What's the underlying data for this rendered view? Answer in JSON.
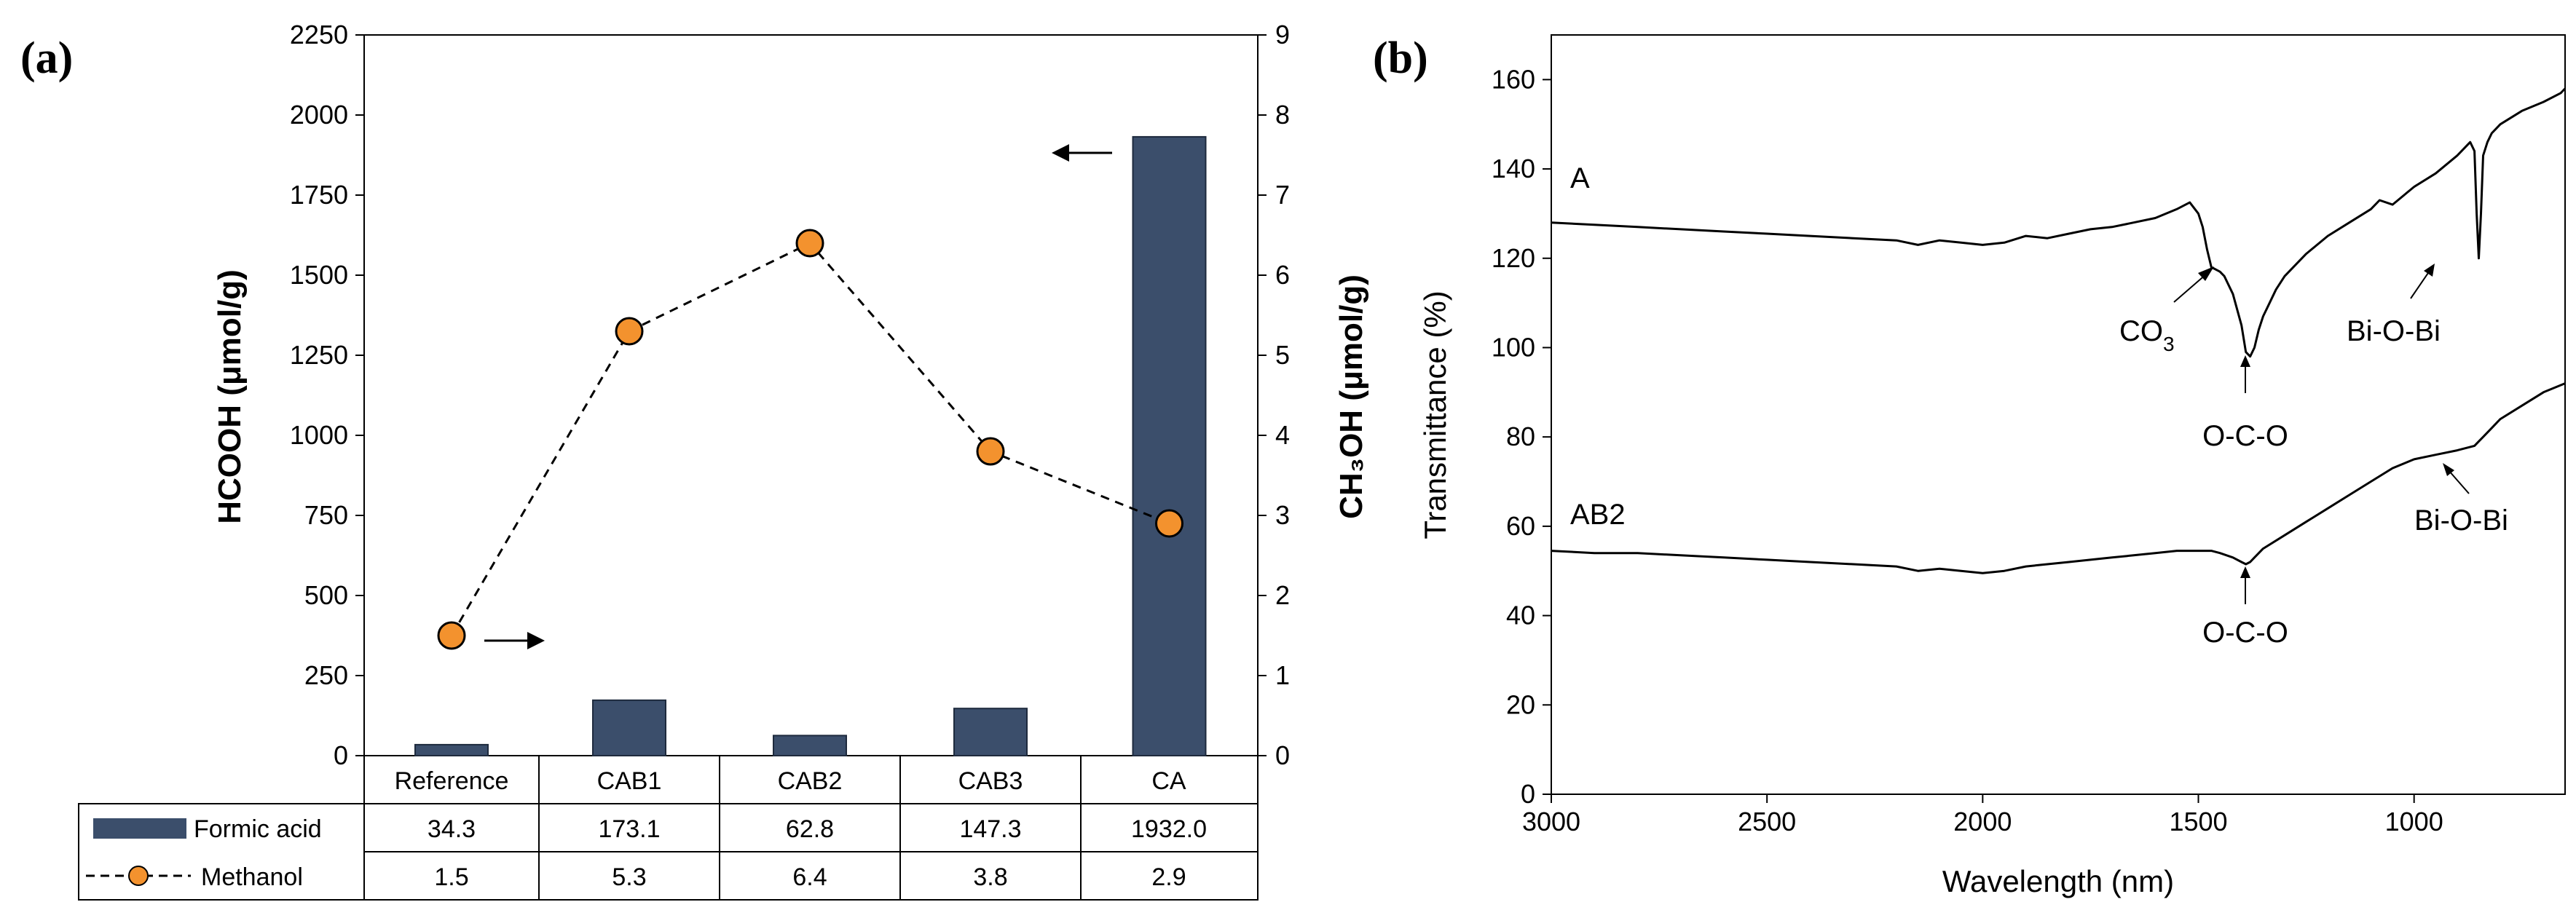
{
  "panel_a": {
    "label": "(a)",
    "left_axis_label": "HCOOH (μmol/g)",
    "right_axis_label": "CH₃OH (μmol/g)",
    "left_ticks": [
      "0",
      "250",
      "500",
      "750",
      "1000",
      "1250",
      "1500",
      "1750",
      "2000",
      "2250"
    ],
    "right_ticks": [
      "0",
      "1",
      "2",
      "3",
      "4",
      "5",
      "6",
      "7",
      "8",
      "9"
    ],
    "table": {
      "header": [
        "Reference",
        "CAB1",
        "CAB2",
        "CAB3",
        "CA"
      ],
      "rows": [
        {
          "label": "Formic acid",
          "values": [
            "34.3",
            "173.1",
            "62.8",
            "147.3",
            "1932.0"
          ]
        },
        {
          "label": "Methanol",
          "values": [
            "1.5",
            "5.3",
            "6.4",
            "3.8",
            "2.9"
          ]
        }
      ]
    }
  },
  "panel_b": {
    "label": "(b)",
    "xlabel": "Wavelength (nm)",
    "ylabel": "Transmittance (%)",
    "x_ticks": [
      "3000",
      "2500",
      "2000",
      "1500",
      "1000"
    ],
    "y_ticks": [
      "0",
      "20",
      "40",
      "60",
      "80",
      "100",
      "120",
      "140",
      "160"
    ],
    "series_labels": [
      "A",
      "AB2"
    ],
    "annotations": {
      "co3_main": "CO",
      "co3_sub": "3",
      "oco_a": "O-C-O",
      "bob_a": "Bi-O-Bi",
      "oco_ab2": "O-C-O",
      "bob_ab2": "Bi-O-Bi"
    }
  },
  "chart_data": [
    {
      "type": "bar",
      "title": "",
      "categories": [
        "Reference",
        "CAB1",
        "CAB2",
        "CAB3",
        "CA"
      ],
      "series": [
        {
          "name": "Formic acid",
          "axis": "left",
          "type": "bar",
          "values": [
            34.3,
            173.1,
            62.8,
            147.3,
            1932.0
          ]
        },
        {
          "name": "Methanol",
          "axis": "right",
          "type": "line",
          "values": [
            1.5,
            5.3,
            6.4,
            3.8,
            2.9
          ]
        }
      ],
      "ylabel": "HCOOH (μmol/g)",
      "y2label": "CH₃OH (μmol/g)",
      "ylim": [
        0,
        2250
      ],
      "y2lim": [
        0,
        9
      ],
      "colors": {
        "bar": "#3b4e6b",
        "marker": "#f3922e"
      }
    },
    {
      "type": "line",
      "title": "",
      "xlabel": "Wavelength (nm)",
      "ylabel": "Transmittance (%)",
      "xlim": [
        3000,
        650
      ],
      "ylim": [
        0,
        170
      ],
      "series": [
        {
          "name": "A",
          "x": [
            3000,
            2900,
            2800,
            2700,
            2600,
            2500,
            2400,
            2300,
            2200,
            2150,
            2100,
            2050,
            2000,
            1950,
            1900,
            1850,
            1800,
            1750,
            1700,
            1650,
            1600,
            1550,
            1520,
            1500,
            1490,
            1480,
            1470,
            1460,
            1450,
            1440,
            1420,
            1400,
            1390,
            1380,
            1370,
            1360,
            1350,
            1340,
            1320,
            1300,
            1250,
            1200,
            1150,
            1100,
            1080,
            1050,
            1000,
            950,
            900,
            870,
            860,
            855,
            850,
            845,
            840,
            830,
            820,
            800,
            750,
            700,
            660,
            650
          ],
          "y": [
            128,
            127.5,
            127,
            126.5,
            126,
            125.5,
            125,
            124.5,
            124,
            123,
            124,
            123.5,
            123,
            123.5,
            125,
            124.5,
            125.5,
            126.5,
            127,
            128,
            129,
            131,
            132.5,
            130,
            127,
            122,
            118,
            117.5,
            117,
            116,
            112,
            105,
            99,
            98,
            100,
            104,
            107,
            109,
            113,
            116,
            121,
            125,
            128,
            131,
            133,
            132,
            136,
            139,
            143,
            146,
            144,
            130,
            120,
            130,
            143,
            146,
            148,
            150,
            153,
            155,
            157,
            158
          ]
        },
        {
          "name": "AB2",
          "x": [
            3000,
            2900,
            2800,
            2700,
            2600,
            2500,
            2400,
            2300,
            2200,
            2150,
            2100,
            2050,
            2000,
            1950,
            1900,
            1850,
            1800,
            1750,
            1700,
            1650,
            1600,
            1550,
            1500,
            1470,
            1450,
            1420,
            1400,
            1390,
            1380,
            1370,
            1350,
            1300,
            1250,
            1200,
            1150,
            1100,
            1050,
            1000,
            950,
            900,
            860,
            850,
            840,
            820,
            800,
            750,
            700,
            650
          ],
          "y": [
            54.5,
            54,
            54,
            53.5,
            53,
            52.5,
            52,
            51.5,
            51,
            50,
            50.5,
            50,
            49.5,
            50,
            51,
            51.5,
            52,
            52.5,
            53,
            53.5,
            54,
            54.5,
            54.5,
            54.5,
            54,
            53,
            52,
            51.5,
            52,
            53,
            55,
            58,
            61,
            64,
            67,
            70,
            73,
            75,
            76,
            77,
            78,
            79,
            80,
            82,
            84,
            87,
            90,
            92
          ]
        }
      ]
    }
  ]
}
